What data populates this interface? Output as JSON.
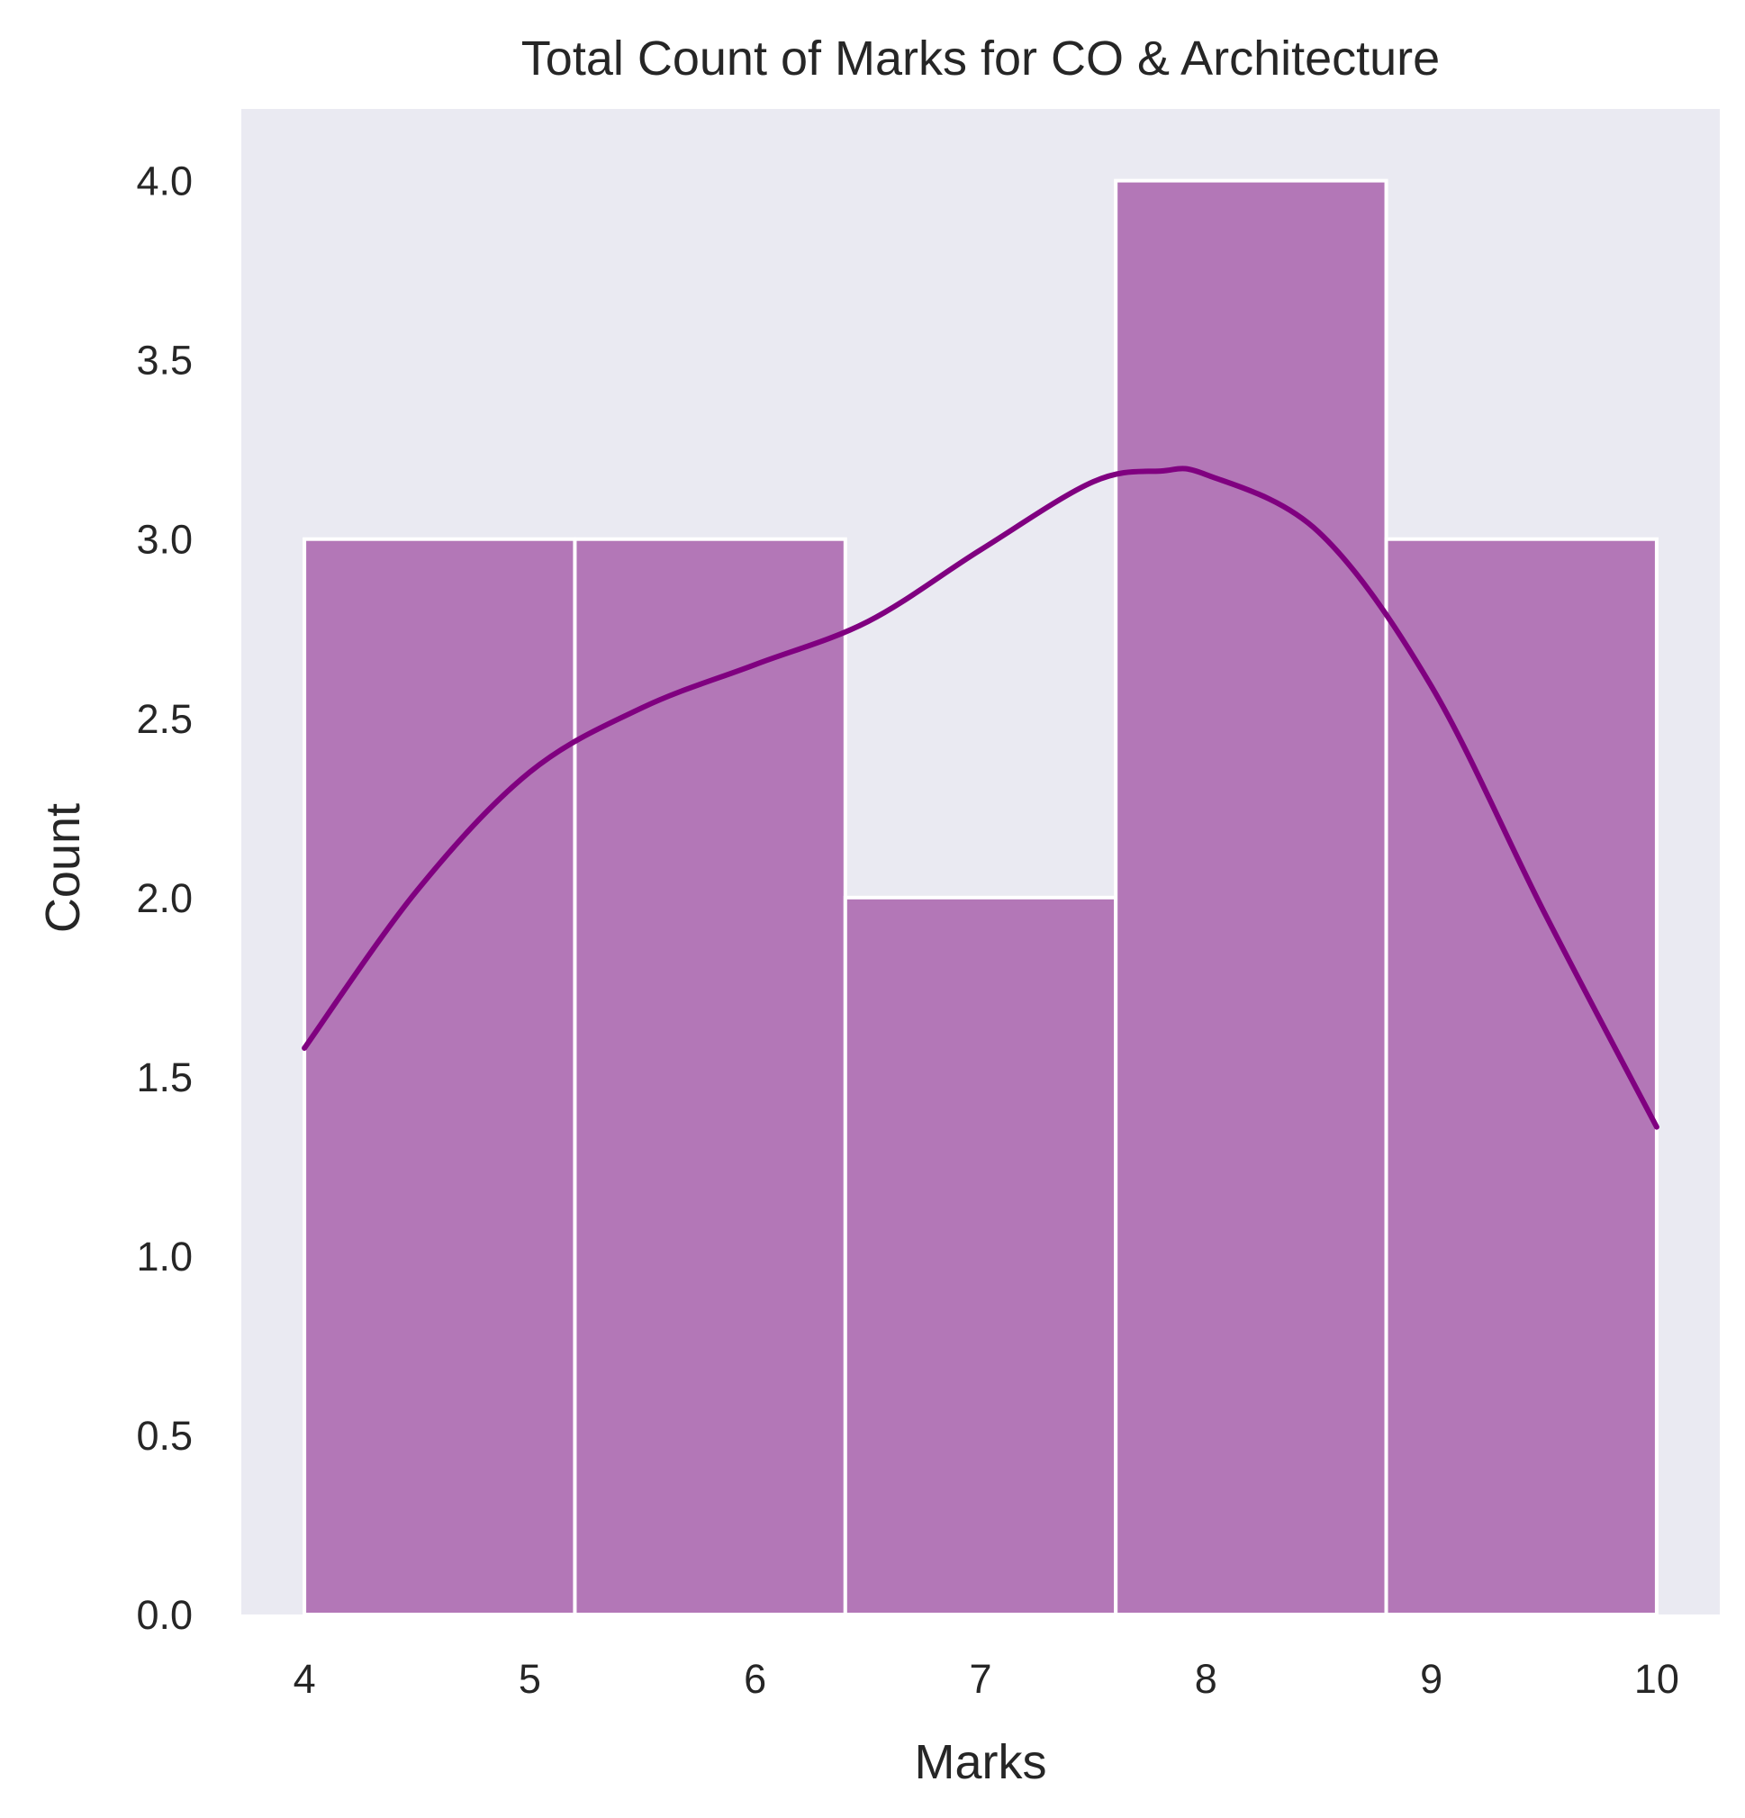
{
  "chart_data": {
    "type": "bar",
    "title": "Total Count of Marks for CO & Architecture",
    "xlabel": "Marks",
    "ylabel": "Count",
    "bins": [
      {
        "start": 4.0,
        "end": 5.2,
        "count": 3
      },
      {
        "start": 5.2,
        "end": 6.4,
        "count": 3
      },
      {
        "start": 6.4,
        "end": 7.6,
        "count": 2
      },
      {
        "start": 7.6,
        "end": 8.8,
        "count": 4
      },
      {
        "start": 8.8,
        "end": 10.0,
        "count": 3
      }
    ],
    "kde": {
      "x": [
        4.0,
        4.5,
        5.0,
        5.5,
        6.0,
        6.5,
        7.0,
        7.5,
        7.8,
        8.0,
        8.5,
        9.0,
        9.5,
        10.0
      ],
      "y": [
        1.58,
        2.02,
        2.35,
        2.53,
        2.65,
        2.77,
        2.97,
        3.16,
        3.19,
        3.18,
        3.02,
        2.59,
        1.96,
        1.36
      ]
    },
    "xlim": [
      3.72,
      10.28
    ],
    "ylim": [
      0,
      4.2
    ],
    "xticks": [
      4,
      5,
      6,
      7,
      8,
      9,
      10
    ],
    "xtick_labels": [
      "4",
      "5",
      "6",
      "7",
      "8",
      "9",
      "10"
    ],
    "yticks": [
      0,
      0.5,
      1.0,
      1.5,
      2.0,
      2.5,
      3.0,
      3.5,
      4.0
    ],
    "ytick_labels": [
      "0.0",
      "0.5",
      "1.0",
      "1.5",
      "2.0",
      "2.5",
      "3.0",
      "3.5",
      "4.0"
    ],
    "grid": false,
    "colors": {
      "bar_fill": "#b377b7",
      "bar_edge": "#ffffff",
      "kde_line": "#800080",
      "plot_background": "#eaeaf2"
    }
  }
}
